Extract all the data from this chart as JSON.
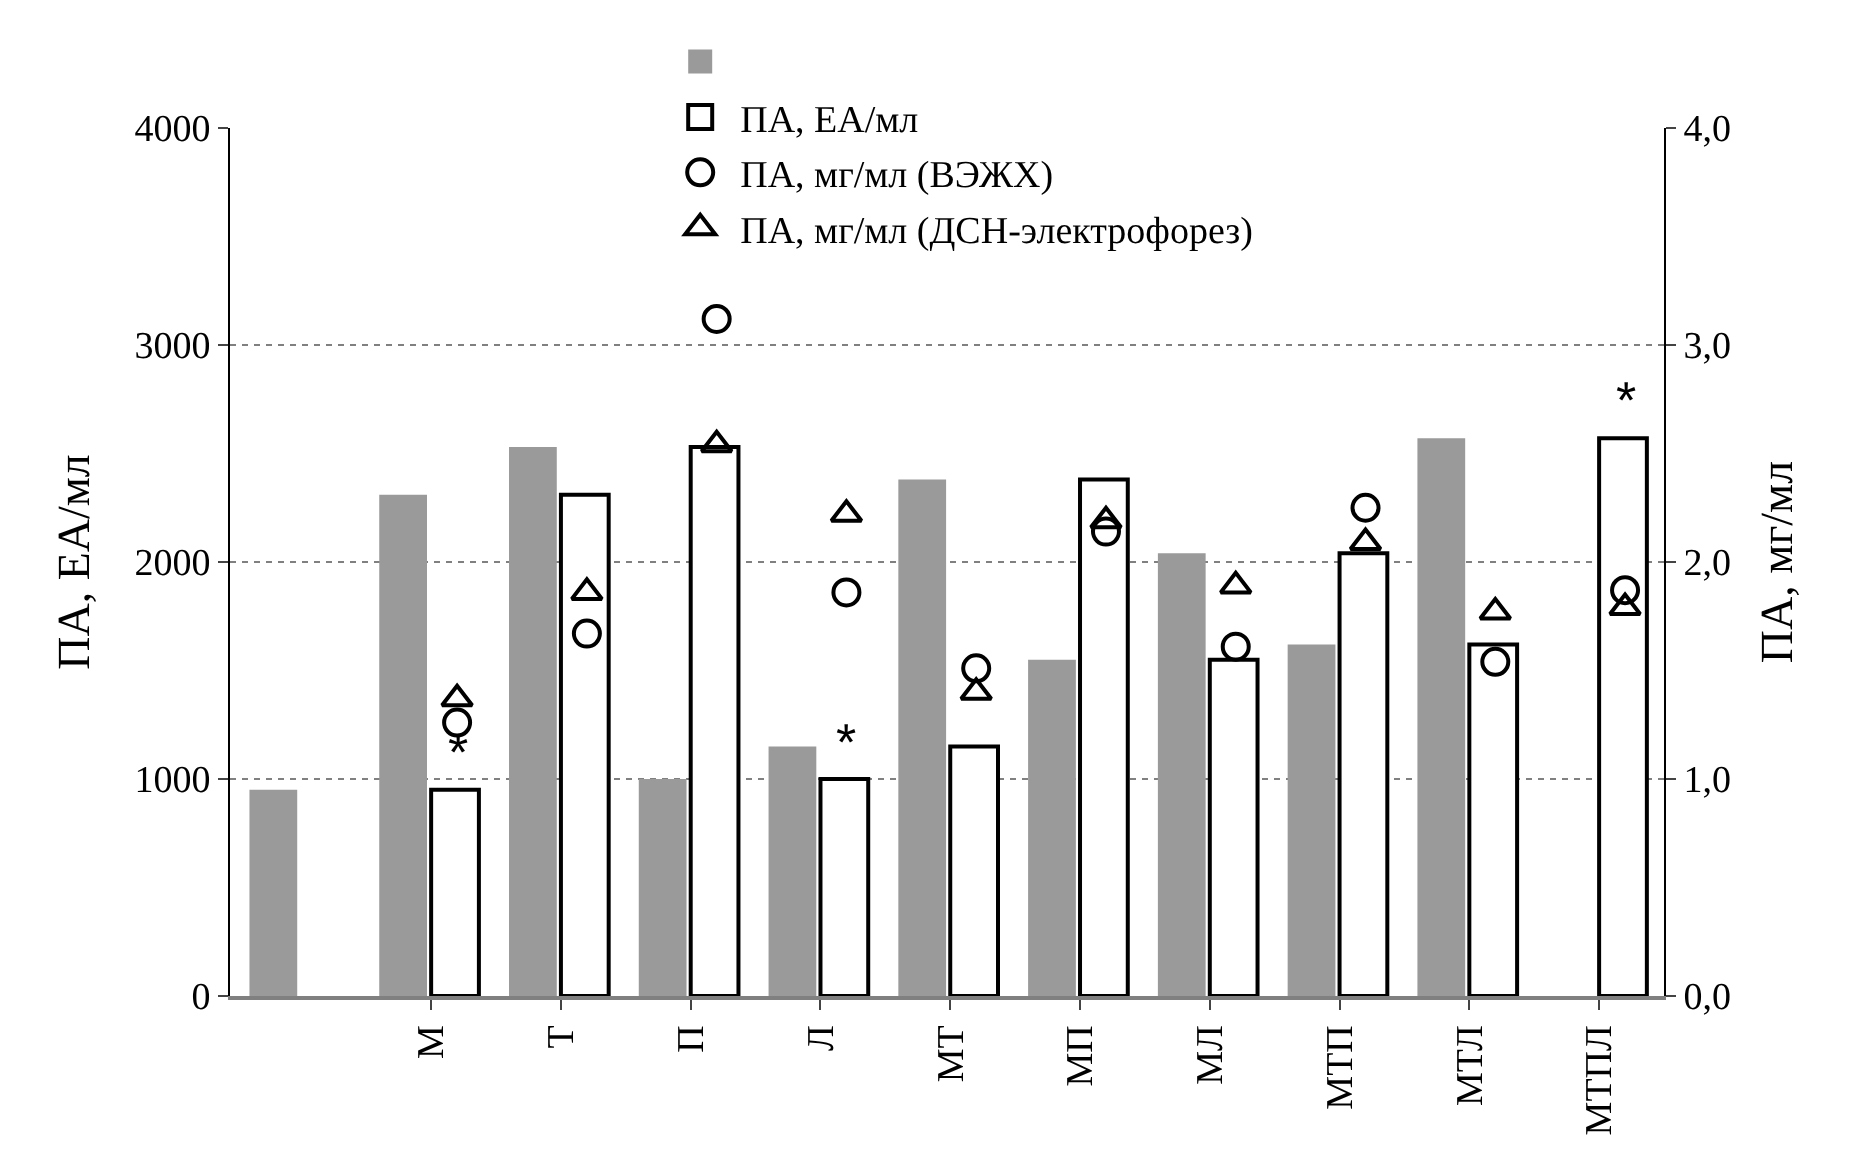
{
  "chart_data": {
    "type": "bar",
    "categories": [
      null,
      "М",
      "Т",
      "П",
      "Л",
      "МТ",
      "МП",
      "МЛ",
      "МТП",
      "МТЛ",
      "МТПЛ"
    ],
    "series": [
      {
        "color": "#9a9a9a",
        "values": [
          950,
          2310,
          2530,
          1000,
          1150,
          2380,
          1550,
          2040,
          1620,
          2570,
          null
        ]
      },
      {
        "name": "ПА, ЕА/мл",
        "color": "#ffffff",
        "values": [
          null,
          950,
          2310,
          2530,
          1000,
          1150,
          2380,
          1550,
          2040,
          1620,
          2570
        ]
      },
      {
        "type": "scatter",
        "name": "ПА, мг/мл (ВЭЖХ)",
        "color": "#000000",
        "axis": "y2",
        "marker": "circle",
        "values": [
          null,
          1.26,
          1.67,
          3.12,
          1.86,
          1.51,
          2.14,
          1.61,
          2.25,
          1.54,
          1.87
        ]
      },
      {
        "type": "scatter",
        "name": "ПА, мг/мл (ДСН-электрофорез)",
        "color": "#000000",
        "axis": "y2",
        "marker": "triangle",
        "values": [
          null,
          1.37,
          1.86,
          2.54,
          2.22,
          1.4,
          2.19,
          1.89,
          2.09,
          1.77,
          1.79
        ]
      }
    ],
    "ylabel": "ПА, ЕА/мл",
    "y2label": "ПА, мг/мл",
    "ylim": [
      0,
      4000
    ],
    "yticks": [
      0,
      1000,
      2000,
      3000,
      4000
    ],
    "y2lim": [
      0,
      4
    ],
    "y2ticks": [
      {
        "value": 0,
        "label": "0,0"
      },
      {
        "value": 1,
        "label": "1,0"
      },
      {
        "value": 2,
        "label": "2,0"
      },
      {
        "value": 3,
        "label": "3,0"
      },
      {
        "value": 4,
        "label": "4,0"
      }
    ],
    "annotations": [
      {
        "text": "*",
        "x": "М",
        "y": 950
      },
      {
        "text": "*",
        "x": "Л",
        "y": 1000
      },
      {
        "text": "*",
        "x": "МТПЛ",
        "y": 2570
      }
    ],
    "grid": "y",
    "legend": "top"
  }
}
